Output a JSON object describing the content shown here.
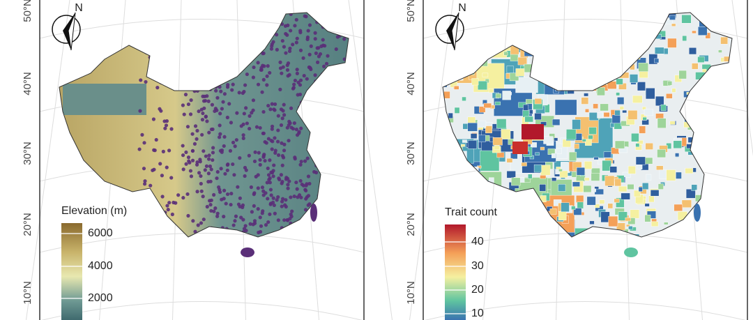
{
  "panels": [
    {
      "lat_labels": [
        "50°N",
        "40°N",
        "30°N",
        "20°N",
        "10°N"
      ],
      "north": "N",
      "legend": {
        "title": "Elevation (m)",
        "ticks": [
          6000,
          4000,
          2000
        ]
      }
    },
    {
      "lat_labels": [
        "50°N",
        "40°N",
        "30°N",
        "20°N",
        "10°N"
      ],
      "north": "N",
      "legend": {
        "title": "Trait count",
        "ticks": [
          40,
          30,
          20,
          10
        ]
      }
    }
  ]
}
